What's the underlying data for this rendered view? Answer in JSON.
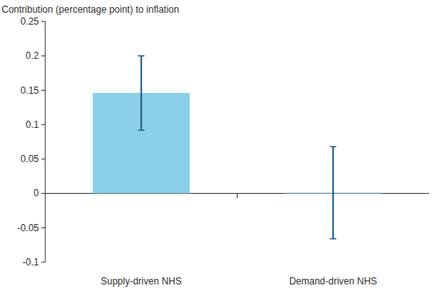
{
  "chart_data": {
    "type": "bar",
    "y_label": "Contribution (percentage point) to inflation",
    "categories": [
      "Supply-driven NHS",
      "Demand-driven NHS"
    ],
    "values": [
      0.146,
      0.001
    ],
    "errors": [
      0.054,
      0.067
    ],
    "color": "#89cfe8",
    "ylim": [
      -0.1,
      0.25
    ],
    "yticks": [
      -0.1,
      -0.05,
      0,
      0.05,
      0.1,
      0.15,
      0.2,
      0.25
    ],
    "grid": false
  }
}
